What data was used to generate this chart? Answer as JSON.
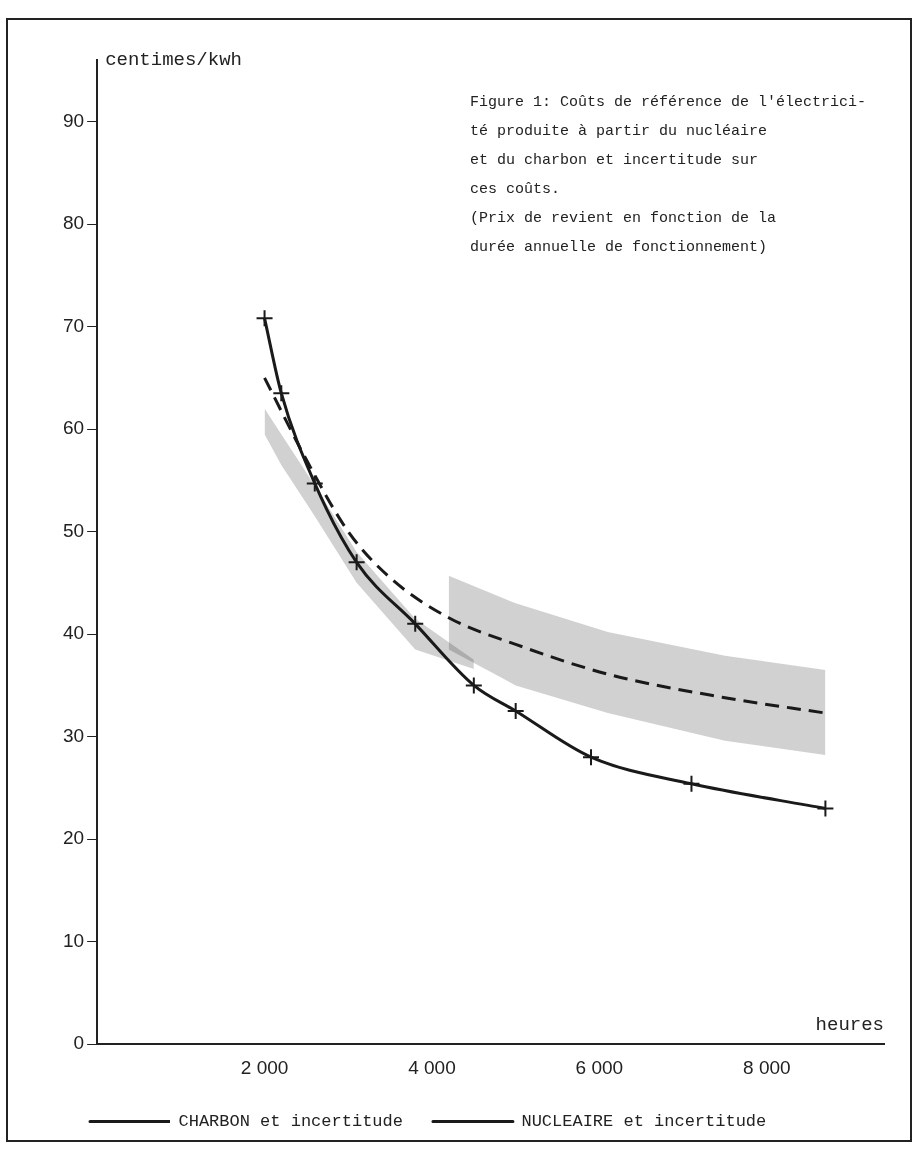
{
  "chart_data": {
    "type": "line",
    "title": "Figure 1: Coûts de référence de l'électrici-\nté produite à partir du nucléaire\net du charbon et incertitude sur\nces coûts.\n(Prix de revient en fonction de la\ndurée annuelle de fonctionnement)",
    "xlabel": "heures",
    "ylabel": "centimes/kwh",
    "xlim": [
      0,
      9400
    ],
    "ylim": [
      0,
      96
    ],
    "xticks": [
      {
        "value": 2000,
        "label": "2 000"
      },
      {
        "value": 4000,
        "label": "4 000"
      },
      {
        "value": 6000,
        "label": "6 000"
      },
      {
        "value": 8000,
        "label": "8 000"
      }
    ],
    "yticks": [
      0,
      10,
      20,
      30,
      40,
      50,
      60,
      70,
      80,
      90
    ],
    "grid": false,
    "legend": "bottom left",
    "series": [
      {
        "name": "CHARBON et incertitude",
        "color": "#1a1a1a",
        "line_style": "dashed",
        "marker": "none",
        "x": [
          2000,
          2500,
          3000,
          3500,
          4200,
          5000,
          6100,
          7500,
          8700
        ],
        "values": [
          65,
          57,
          50,
          45.5,
          41.6,
          39,
          36.1,
          33.8,
          32.3
        ],
        "lower": [
          null,
          null,
          null,
          null,
          38.5,
          35,
          32.3,
          29.6,
          28.2
        ],
        "upper": [
          null,
          null,
          null,
          null,
          45.7,
          43,
          40.2,
          37.9,
          36.5
        ]
      },
      {
        "name": "NUCLEAIRE et incertitude",
        "color": "#1a1a1a",
        "line_style": "solid",
        "marker": "cross",
        "x": [
          2000,
          2200,
          2600,
          3100,
          3800,
          4500,
          5000,
          5900,
          7100,
          8700
        ],
        "values": [
          70.8,
          63.5,
          54.7,
          47,
          41,
          35,
          32.5,
          28,
          25.4,
          23
        ],
        "lower": [
          59.5,
          56.5,
          51.5,
          45,
          38.5,
          36.6,
          null,
          null,
          null,
          null
        ],
        "upper": [
          62,
          59.5,
          54.5,
          48,
          41.5,
          37.5,
          null,
          null,
          null,
          null
        ]
      }
    ]
  }
}
